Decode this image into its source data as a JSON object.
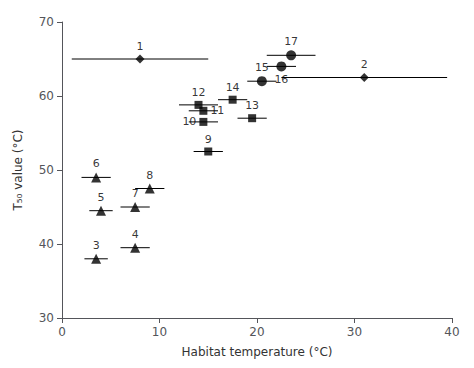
{
  "chart_data": {
    "type": "scatter",
    "xlabel": "Habitat temperature (°C)",
    "ylabel": "T₅₀ value (°C)",
    "xlim": [
      0,
      40
    ],
    "ylim": [
      30,
      70
    ],
    "xticks": [
      0,
      10,
      20,
      30,
      40
    ],
    "yticks": [
      30,
      40,
      50,
      60,
      70
    ],
    "grid": false,
    "color": "#000000",
    "points": [
      {
        "id": 1,
        "marker": "diamond",
        "x": 8,
        "y": 65,
        "xerr_lo": 7.0,
        "xerr_hi": 7.0
      },
      {
        "id": 2,
        "marker": "diamond",
        "x": 31,
        "y": 62.5,
        "xerr_lo": 8.5,
        "xerr_hi": 8.5
      },
      {
        "id": 3,
        "marker": "triangle",
        "x": 3.5,
        "y": 38,
        "xerr_lo": 1.2,
        "xerr_hi": 1.2
      },
      {
        "id": 4,
        "marker": "triangle",
        "x": 7.5,
        "y": 39.5,
        "xerr_lo": 1.5,
        "xerr_hi": 1.5
      },
      {
        "id": 5,
        "marker": "triangle",
        "x": 4.0,
        "y": 44.5,
        "xerr_lo": 1.2,
        "xerr_hi": 1.2
      },
      {
        "id": 6,
        "marker": "triangle",
        "x": 3.5,
        "y": 49,
        "xerr_lo": 1.5,
        "xerr_hi": 1.5
      },
      {
        "id": 7,
        "marker": "triangle",
        "x": 7.5,
        "y": 45.0,
        "xerr_lo": 1.5,
        "xerr_hi": 1.5
      },
      {
        "id": 8,
        "marker": "triangle",
        "x": 9.0,
        "y": 47.5,
        "xerr_lo": 1.5,
        "xerr_hi": 1.5
      },
      {
        "id": 9,
        "marker": "square",
        "x": 15.0,
        "y": 52.5,
        "xerr_lo": 1.5,
        "xerr_hi": 1.5
      },
      {
        "id": 10,
        "marker": "square",
        "x": 14.5,
        "y": 56.5,
        "xerr_lo": 1.5,
        "xerr_hi": 1.5
      },
      {
        "id": 11,
        "marker": "square",
        "x": 14.5,
        "y": 58.0,
        "xerr_lo": 1.5,
        "xerr_hi": 1.5
      },
      {
        "id": 12,
        "marker": "square",
        "x": 14.0,
        "y": 58.8,
        "xerr_lo": 2.0,
        "xerr_hi": 2.0
      },
      {
        "id": 13,
        "marker": "square",
        "x": 19.5,
        "y": 57.0,
        "xerr_lo": 1.5,
        "xerr_hi": 1.5
      },
      {
        "id": 14,
        "marker": "square",
        "x": 17.5,
        "y": 59.5,
        "xerr_lo": 1.5,
        "xerr_hi": 1.5
      },
      {
        "id": 15,
        "marker": "circle",
        "x": 20.5,
        "y": 62.0,
        "xerr_lo": 1.5,
        "xerr_hi": 1.5
      },
      {
        "id": 16,
        "marker": "circle",
        "x": 22.5,
        "y": 64.0,
        "xerr_lo": 1.5,
        "xerr_hi": 1.5
      },
      {
        "id": 17,
        "marker": "circle",
        "x": 23.5,
        "y": 65.5,
        "xerr_lo": 2.5,
        "xerr_hi": 2.5
      }
    ]
  }
}
